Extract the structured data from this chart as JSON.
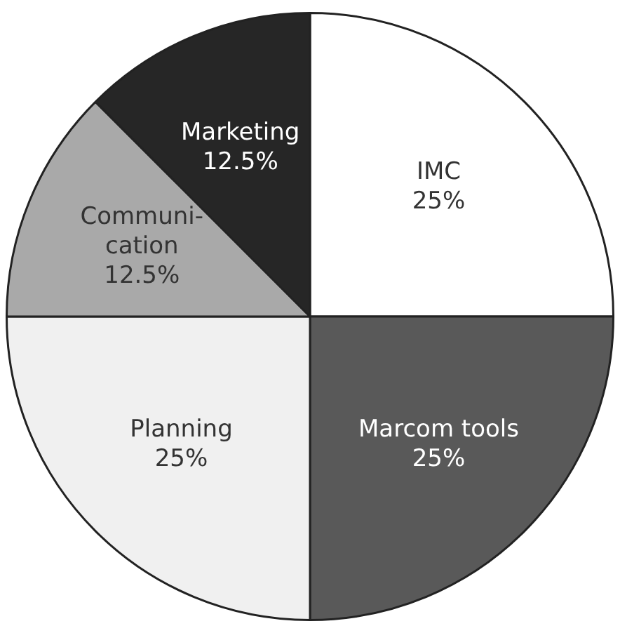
{
  "chart_data": {
    "type": "pie",
    "categories": [
      "IMC",
      "Marcom tools",
      "Planning",
      "Communi-\ncation",
      "Marketing"
    ],
    "values": [
      25,
      25,
      25,
      12.5,
      12.5
    ],
    "colors": [
      "#ffffff",
      "#595959",
      "#f0f0f0",
      "#a9a9a9",
      "#262626"
    ],
    "value_labels": [
      "25%",
      "25%",
      "25%",
      "12.5%",
      "12.5%"
    ],
    "legend": false
  }
}
